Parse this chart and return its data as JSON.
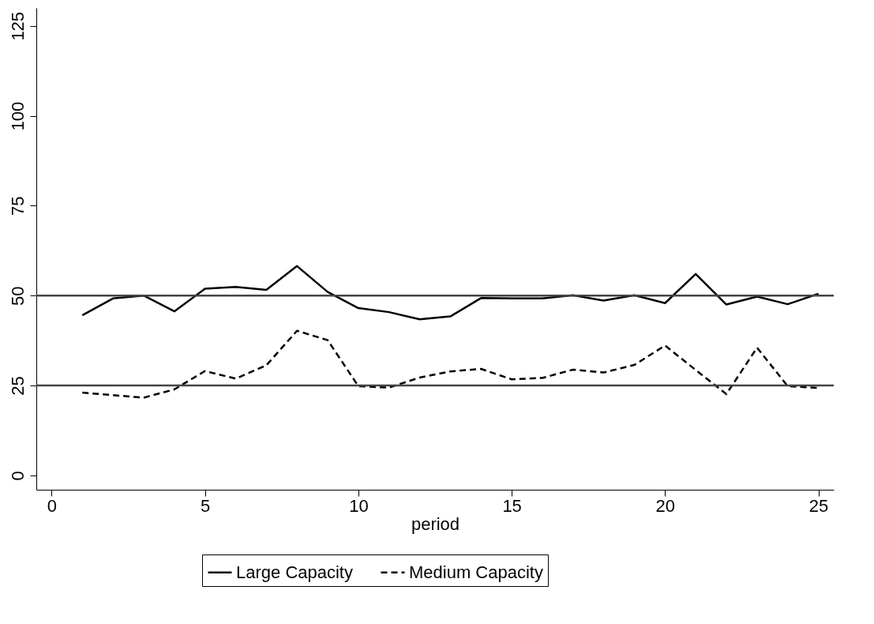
{
  "chart_data": {
    "type": "line",
    "xlabel": "period",
    "x": [
      1,
      2,
      3,
      4,
      5,
      6,
      7,
      8,
      9,
      10,
      11,
      12,
      13,
      14,
      15,
      16,
      17,
      18,
      19,
      20,
      21,
      22,
      23,
      24,
      25
    ],
    "series": [
      {
        "name": "Large Capacity",
        "color": "#000000",
        "line_style": "solid",
        "values": [
          44.5,
          49.2,
          50,
          45.6,
          51.9,
          52.4,
          51.6,
          58.2,
          51,
          46.5,
          45.4,
          43.4,
          44.2,
          49.3,
          49.2,
          49.2,
          50.1,
          48.6,
          50.1,
          47.9,
          56,
          47.5,
          49.7,
          47.6,
          50.5
        ]
      },
      {
        "name": "Medium Capacity",
        "color": "#000000",
        "line_style": "dashed",
        "values": [
          23,
          22.3,
          21.6,
          23.9,
          29,
          26.9,
          30.6,
          40.2,
          37.6,
          24.8,
          24.4,
          27.2,
          28.9,
          29.6,
          26.7,
          27.1,
          29.4,
          28.6,
          30.7,
          36.1,
          29.3,
          22.6,
          35.5,
          24.8,
          24.3
        ]
      }
    ],
    "xlim": [
      -0.5,
      25.5
    ],
    "xticks": [
      0,
      5,
      10,
      15,
      20,
      25
    ],
    "ylim": [
      -4,
      130
    ],
    "yticks": [
      0,
      25,
      50,
      75,
      100,
      125
    ],
    "ref_lines": [
      {
        "axis": "y",
        "value": 25,
        "color": "#444444"
      },
      {
        "axis": "y",
        "value": 50,
        "color": "#444444"
      }
    ],
    "grid": false,
    "legend": "bottom",
    "marker": "none"
  }
}
